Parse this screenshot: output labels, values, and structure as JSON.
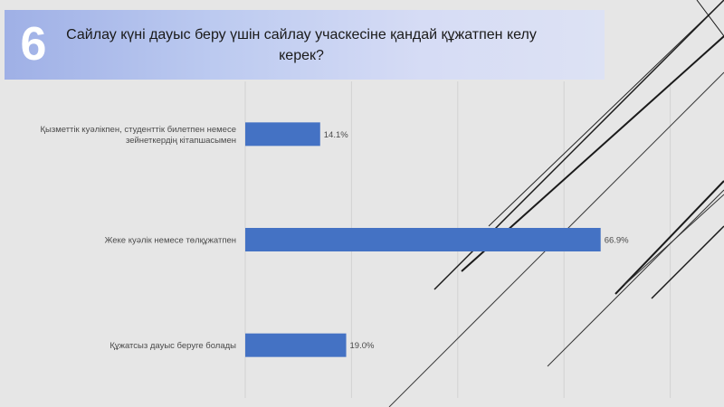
{
  "slide": {
    "number": "6",
    "question": "Сайлау күні дауыс беру үшін сайлау учаскесіне қандай құжатпен келу керек?"
  },
  "chart_data": {
    "type": "bar",
    "orientation": "horizontal",
    "categories": [
      [
        "Қызметтік куәлікпен,  студенттік билетпен  немесе",
        "зейнеткердің кітапшасымен"
      ],
      [
        "Жеке куәлік немесе   төлқұжатпен"
      ],
      [
        "Құжатсыз дауыс беруге  болады"
      ]
    ],
    "values": [
      14.1,
      66.9,
      19.0
    ],
    "value_labels": [
      "14.1%",
      "66.9%",
      "19.0%"
    ],
    "xlim": [
      0,
      100
    ],
    "grid": true,
    "bar_color": "#4472c4"
  }
}
